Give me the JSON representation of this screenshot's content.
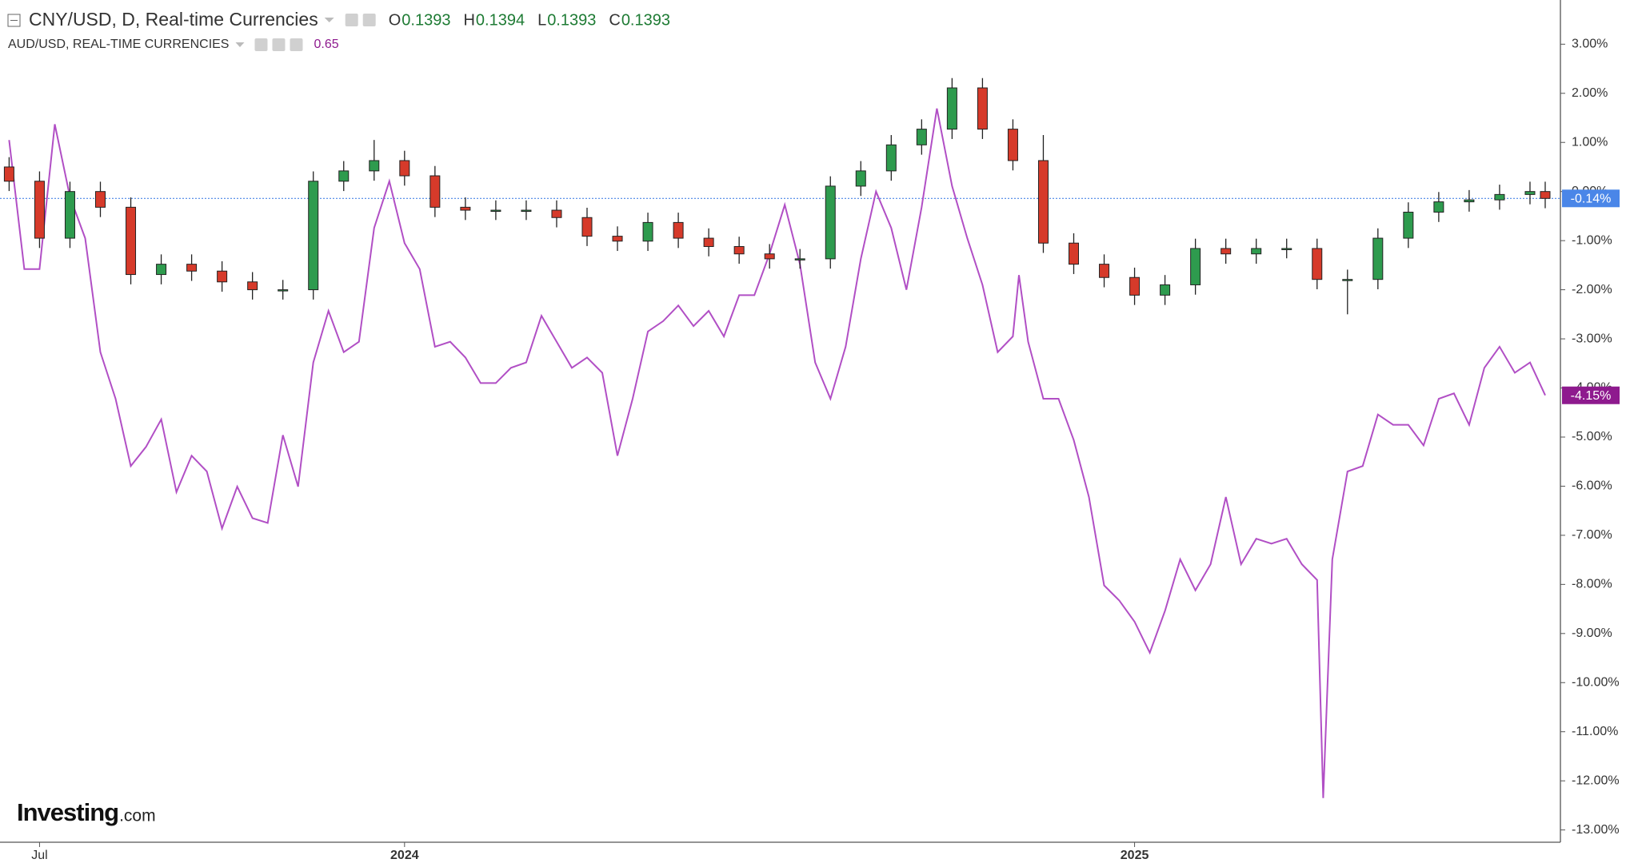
{
  "chart_data": {
    "type": "candlestick",
    "xlim": [
      -0.65,
      25.0
    ],
    "xticks": [
      {
        "value": 0,
        "label": "Jul"
      },
      {
        "value": 6,
        "label": "2024"
      },
      {
        "value": 18,
        "label": "2025"
      }
    ],
    "ylim": [
      3.9,
      -13.25
    ],
    "yticks": [
      {
        "value": 3,
        "label": "3.00%"
      },
      {
        "value": 2,
        "label": "2.00%"
      },
      {
        "value": 1,
        "label": "1.00%"
      },
      {
        "value": 0,
        "label": "0.00%"
      },
      {
        "value": -1,
        "label": "-1.00%"
      },
      {
        "value": -2,
        "label": "-2.00%"
      },
      {
        "value": -3,
        "label": "-3.00%"
      },
      {
        "value": -4,
        "label": "-4.00%"
      },
      {
        "value": -5,
        "label": "-5.00%"
      },
      {
        "value": -6,
        "label": "-6.00%"
      },
      {
        "value": -7,
        "label": "-7.00%"
      },
      {
        "value": -8,
        "label": "-8.00%"
      },
      {
        "value": -9,
        "label": "-9.00%"
      },
      {
        "value": -10,
        "label": "-10.00%"
      },
      {
        "value": -11,
        "label": "-11.00%"
      },
      {
        "value": -12,
        "label": "-12.00%"
      },
      {
        "value": -13,
        "label": "-13.00%"
      }
    ],
    "watermark": {
      "brand": "Investing",
      "suffix": ".com"
    },
    "series": [
      {
        "name": "CNY/USD, D, Real-time Currencies",
        "type": "candlestick",
        "color": "#4a86e8",
        "up_color": "#2e9b4e",
        "down_color": "#d63a2a",
        "last_label": "-0.14%",
        "quote": [
          {
            "label": "O",
            "value": 0.1393
          },
          {
            "label": "H",
            "value": 0.1394
          },
          {
            "label": "L",
            "value": 0.1393
          },
          {
            "label": "C",
            "value": 0.1393
          }
        ],
        "x": [
          -0.5,
          0,
          0.5,
          1,
          1.5,
          2,
          2.5,
          3,
          3.5,
          4,
          4.5,
          5,
          5.5,
          6,
          6.5,
          7,
          7.5,
          8,
          8.5,
          9,
          9.5,
          10,
          10.5,
          11,
          11.5,
          12,
          12.5,
          13,
          13.5,
          14,
          14.5,
          15,
          15.5,
          16,
          16.5,
          17,
          17.5,
          18,
          18.5,
          19,
          19.5,
          20,
          20.5,
          21,
          21.5,
          22,
          22.5,
          23,
          23.5,
          24,
          24.5,
          24.75
        ],
        "open": [
          0.5,
          0.21,
          -0.95,
          0.0,
          -0.32,
          -1.69,
          -1.48,
          -1.62,
          -1.84,
          -2.0,
          -2.0,
          0.21,
          0.42,
          0.63,
          0.32,
          -0.32,
          -0.38,
          -0.38,
          -0.38,
          -0.53,
          -0.91,
          -1.01,
          -0.63,
          -0.95,
          -1.12,
          -1.27,
          -1.37,
          -1.37,
          0.11,
          0.42,
          0.95,
          1.27,
          2.11,
          1.27,
          0.63,
          -1.05,
          -1.48,
          -1.75,
          -2.11,
          -1.9,
          -1.16,
          -1.27,
          -1.16,
          -1.16,
          -1.79,
          -1.79,
          -0.95,
          -0.42,
          -0.21,
          -0.17,
          -0.06,
          0.0
        ],
        "high": [
          0.7,
          0.41,
          0.2,
          0.2,
          -0.12,
          -1.28,
          -1.28,
          -1.42,
          -1.64,
          -1.8,
          0.41,
          0.62,
          1.05,
          0.83,
          0.52,
          -0.12,
          -0.18,
          -0.18,
          -0.18,
          -0.33,
          -0.71,
          -0.43,
          -0.43,
          -0.75,
          -0.92,
          -1.07,
          -1.17,
          0.31,
          0.62,
          1.15,
          1.47,
          2.31,
          2.31,
          1.47,
          1.15,
          -0.85,
          -1.28,
          -1.55,
          -1.7,
          -0.96,
          -0.96,
          -0.96,
          -0.96,
          -0.96,
          -1.59,
          -0.75,
          -0.22,
          -0.01,
          0.03,
          0.14,
          0.2,
          0.2
        ],
        "low": [
          0.01,
          -1.15,
          -1.15,
          -0.52,
          -1.89,
          -1.89,
          -1.82,
          -2.04,
          -2.2,
          -2.2,
          -2.2,
          0.01,
          0.22,
          0.12,
          -0.52,
          -0.58,
          -0.58,
          -0.58,
          -0.73,
          -1.11,
          -1.21,
          -1.21,
          -1.15,
          -1.32,
          -1.47,
          -1.57,
          -1.57,
          -1.57,
          -0.09,
          0.22,
          0.75,
          1.07,
          1.07,
          0.43,
          -1.25,
          -1.68,
          -1.95,
          -2.31,
          -2.31,
          -2.1,
          -1.47,
          -1.47,
          -1.36,
          -1.99,
          -2.5,
          -1.99,
          -1.15,
          -0.62,
          -0.41,
          -0.37,
          -0.26,
          -0.34
        ],
        "close": [
          0.21,
          -0.95,
          0.0,
          -0.32,
          -1.69,
          -1.48,
          -1.62,
          -1.84,
          -2.0,
          -2.0,
          0.21,
          0.42,
          0.63,
          0.32,
          -0.32,
          -0.38,
          -0.38,
          -0.38,
          -0.53,
          -0.91,
          -1.01,
          -0.63,
          -0.95,
          -1.12,
          -1.27,
          -1.37,
          -1.37,
          0.11,
          0.42,
          0.95,
          1.27,
          2.11,
          1.27,
          0.63,
          -1.05,
          -1.48,
          -1.75,
          -2.11,
          -1.9,
          -1.16,
          -1.27,
          -1.16,
          -1.16,
          -1.79,
          -1.79,
          -0.95,
          -0.42,
          -0.21,
          -0.17,
          -0.06,
          0.0,
          -0.14
        ]
      },
      {
        "name": "AUD/USD, REAL-TIME CURRENCIES",
        "type": "line",
        "color": "#b14fc5",
        "badge_color": "#8e1a8e",
        "last_label": "-4.15%",
        "price": 0.65,
        "x": [
          -0.5,
          -0.25,
          0,
          0.25,
          0.5,
          0.75,
          1,
          1.25,
          1.5,
          1.75,
          2,
          2.25,
          2.5,
          2.75,
          3,
          3.25,
          3.5,
          3.75,
          4,
          4.25,
          4.5,
          4.75,
          5,
          5.25,
          5.5,
          5.75,
          6,
          6.25,
          6.5,
          6.75,
          7,
          7.25,
          7.5,
          7.75,
          8,
          8.25,
          8.5,
          8.75,
          9,
          9.25,
          9.5,
          9.75,
          10,
          10.25,
          10.5,
          10.75,
          11,
          11.25,
          11.5,
          11.75,
          12,
          12.25,
          12.5,
          12.75,
          13,
          13.25,
          13.5,
          13.75,
          14,
          14.25,
          14.5,
          14.75,
          15,
          15.25,
          15.5,
          15.75,
          16,
          16.1,
          16.25,
          16.5,
          16.75,
          17,
          17.25,
          17.5,
          17.75,
          18,
          18.25,
          18.5,
          18.75,
          19,
          19.25,
          19.5,
          19.75,
          20,
          20.25,
          20.5,
          20.75,
          21,
          21.1,
          21.25,
          21.5,
          21.75,
          22,
          22.25,
          22.5,
          22.75,
          23,
          23.25,
          23.5,
          23.75,
          24,
          24.25,
          24.5,
          24.75
        ],
        "values": [
          1.05,
          -1.58,
          -1.58,
          1.37,
          -0.11,
          -0.95,
          -3.27,
          -4.22,
          -5.59,
          -5.2,
          -4.64,
          -6.12,
          -5.38,
          -5.7,
          -6.86,
          -6.01,
          -6.65,
          -6.75,
          -4.96,
          -6.01,
          -3.48,
          -2.43,
          -3.27,
          -3.06,
          -0.74,
          0.21,
          -1.05,
          -1.58,
          -3.16,
          -3.06,
          -3.38,
          -3.9,
          -3.9,
          -3.59,
          -3.48,
          -2.53,
          -3.06,
          -3.59,
          -3.38,
          -3.69,
          -5.38,
          -4.22,
          -2.85,
          -2.64,
          -2.32,
          -2.74,
          -2.43,
          -2.95,
          -2.11,
          -2.11,
          -1.27,
          -0.27,
          -1.48,
          -3.48,
          -4.22,
          -3.16,
          -1.37,
          0.0,
          -0.74,
          -2.0,
          -0.32,
          1.69,
          0.11,
          -0.95,
          -1.9,
          -3.27,
          -2.95,
          -1.7,
          -3.06,
          -4.22,
          -4.22,
          -5.06,
          -6.22,
          -8.02,
          -8.33,
          -8.76,
          -9.39,
          -8.54,
          -7.49,
          -8.12,
          -7.59,
          -6.22,
          -7.59,
          -7.07,
          -7.17,
          -7.07,
          -7.59,
          -7.91,
          -12.35,
          -7.49,
          -5.7,
          -5.59,
          -4.54,
          -4.75,
          -4.75,
          -5.17,
          -4.22,
          -4.11,
          -4.75,
          -3.59,
          -3.16,
          -3.69,
          -3.48,
          -4.15
        ]
      }
    ]
  }
}
